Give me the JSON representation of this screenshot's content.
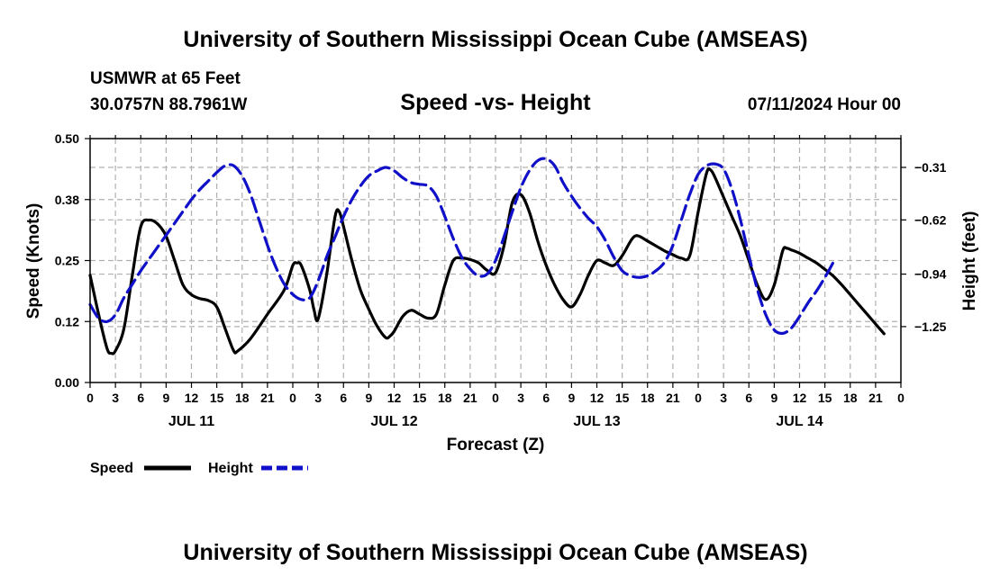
{
  "header": {
    "title": "University of Southern Mississippi Ocean Cube (AMSEAS)",
    "station": "USMWR at 65 Feet",
    "location": "30.0757N  88.7961W",
    "subtitle": "Speed -vs- Height",
    "datestamp": "07/11/2024 Hour 00"
  },
  "footer": {
    "title": "University of Southern Mississippi Ocean Cube (AMSEAS)"
  },
  "colors": {
    "speed": "#000000",
    "height": "#1010c8",
    "grid": "#b0b0b0"
  },
  "chart_data": {
    "type": "line",
    "xlabel": "Forecast (Z)",
    "ylabel": "Speed (Knots)",
    "y2label": "Height (feet)",
    "x_range_hours": [
      0,
      96
    ],
    "x_tick_step_hours": 3,
    "x_tick_labels": [
      "0",
      "3",
      "6",
      "9",
      "12",
      "15",
      "18",
      "21",
      "0",
      "3",
      "6",
      "9",
      "12",
      "15",
      "18",
      "21",
      "0",
      "3",
      "6",
      "9",
      "12",
      "15",
      "18",
      "21",
      "0",
      "3",
      "6",
      "9",
      "12",
      "15",
      "18",
      "21",
      "0"
    ],
    "day_labels": [
      {
        "label": "JUL 11",
        "hour": 12
      },
      {
        "label": "JUL 12",
        "hour": 36
      },
      {
        "label": "JUL 13",
        "hour": 60
      },
      {
        "label": "JUL 14",
        "hour": 84
      }
    ],
    "ylim": [
      0,
      0.5
    ],
    "y_ticks": [
      0.0,
      0.125,
      0.25,
      0.375,
      0.5
    ],
    "y_tick_labels": [
      "0.00",
      "0.12",
      "0.25",
      "0.38",
      "0.50"
    ],
    "y2lim": [
      -1.58,
      -0.14
    ],
    "y2_ticks": [
      -0.31,
      -0.62,
      -0.94,
      -1.25
    ],
    "y2_tick_labels": [
      "-0.31",
      "-0.62",
      "-0.94",
      "-1.25"
    ],
    "series": [
      {
        "name": "Speed",
        "axis": "left",
        "style": "solid",
        "points": [
          [
            0,
            0.22
          ],
          [
            1,
            0.14
          ],
          [
            2,
            0.07
          ],
          [
            2.5,
            0.06
          ],
          [
            3,
            0.065
          ],
          [
            4,
            0.11
          ],
          [
            5,
            0.22
          ],
          [
            6,
            0.32
          ],
          [
            7,
            0.333
          ],
          [
            8,
            0.325
          ],
          [
            9,
            0.3
          ],
          [
            10,
            0.25
          ],
          [
            11,
            0.2
          ],
          [
            12,
            0.18
          ],
          [
            13,
            0.172
          ],
          [
            14,
            0.168
          ],
          [
            15,
            0.155
          ],
          [
            16,
            0.11
          ],
          [
            17,
            0.065
          ],
          [
            17.5,
            0.065
          ],
          [
            19,
            0.09
          ],
          [
            21,
            0.14
          ],
          [
            23,
            0.19
          ],
          [
            24,
            0.24
          ],
          [
            24.5,
            0.245
          ],
          [
            25,
            0.24
          ],
          [
            26,
            0.19
          ],
          [
            26.5,
            0.15
          ],
          [
            27,
            0.13
          ],
          [
            28,
            0.22
          ],
          [
            29,
            0.34
          ],
          [
            29.5,
            0.35
          ],
          [
            30,
            0.32
          ],
          [
            31,
            0.25
          ],
          [
            32,
            0.19
          ],
          [
            33,
            0.15
          ],
          [
            34,
            0.115
          ],
          [
            35,
            0.092
          ],
          [
            35.5,
            0.095
          ],
          [
            36,
            0.105
          ],
          [
            37,
            0.135
          ],
          [
            38,
            0.148
          ],
          [
            39,
            0.14
          ],
          [
            40,
            0.132
          ],
          [
            41,
            0.14
          ],
          [
            42,
            0.2
          ],
          [
            43,
            0.25
          ],
          [
            44,
            0.255
          ],
          [
            45,
            0.252
          ],
          [
            46,
            0.245
          ],
          [
            47,
            0.23
          ],
          [
            48,
            0.225
          ],
          [
            49,
            0.28
          ],
          [
            50,
            0.37
          ],
          [
            51,
            0.385
          ],
          [
            52,
            0.35
          ],
          [
            53,
            0.29
          ],
          [
            54,
            0.24
          ],
          [
            55,
            0.2
          ],
          [
            56,
            0.17
          ],
          [
            57,
            0.155
          ],
          [
            58,
            0.18
          ],
          [
            59,
            0.22
          ],
          [
            60,
            0.25
          ],
          [
            61,
            0.245
          ],
          [
            62,
            0.24
          ],
          [
            63,
            0.26
          ],
          [
            64,
            0.29
          ],
          [
            64.5,
            0.3
          ],
          [
            65,
            0.3
          ],
          [
            66,
            0.29
          ],
          [
            67,
            0.28
          ],
          [
            68,
            0.27
          ],
          [
            69,
            0.262
          ],
          [
            70,
            0.255
          ],
          [
            71,
            0.26
          ],
          [
            72,
            0.35
          ],
          [
            73,
            0.43
          ],
          [
            73.5,
            0.435
          ],
          [
            74,
            0.42
          ],
          [
            75,
            0.38
          ],
          [
            76,
            0.34
          ],
          [
            77,
            0.3
          ],
          [
            78,
            0.25
          ],
          [
            79,
            0.2
          ],
          [
            80,
            0.17
          ],
          [
            81,
            0.2
          ],
          [
            82,
            0.27
          ],
          [
            82.5,
            0.275
          ],
          [
            83,
            0.272
          ],
          [
            84,
            0.265
          ],
          [
            85,
            0.255
          ],
          [
            86,
            0.245
          ],
          [
            87,
            0.232
          ],
          [
            88,
            0.218
          ],
          [
            89,
            0.2
          ],
          [
            90,
            0.18
          ],
          [
            91,
            0.16
          ],
          [
            92,
            0.14
          ],
          [
            93,
            0.12
          ],
          [
            94,
            0.1
          ]
        ]
      },
      {
        "name": "Height",
        "axis": "right",
        "style": "dashed",
        "points": [
          [
            0,
            -1.12
          ],
          [
            1,
            -1.2
          ],
          [
            2,
            -1.22
          ],
          [
            3,
            -1.18
          ],
          [
            4,
            -1.08
          ],
          [
            5,
            -1.0
          ],
          [
            6,
            -0.92
          ],
          [
            7,
            -0.85
          ],
          [
            8,
            -0.78
          ],
          [
            9,
            -0.71
          ],
          [
            10,
            -0.64
          ],
          [
            11,
            -0.57
          ],
          [
            12,
            -0.5
          ],
          [
            13,
            -0.44
          ],
          [
            14,
            -0.39
          ],
          [
            15,
            -0.34
          ],
          [
            16,
            -0.3
          ],
          [
            17,
            -0.3
          ],
          [
            18,
            -0.36
          ],
          [
            19,
            -0.47
          ],
          [
            20,
            -0.62
          ],
          [
            21,
            -0.77
          ],
          [
            22,
            -0.9
          ],
          [
            23,
            -1.0
          ],
          [
            24,
            -1.06
          ],
          [
            25,
            -1.09
          ],
          [
            26,
            -1.08
          ],
          [
            27,
            -0.98
          ],
          [
            28,
            -0.84
          ],
          [
            29,
            -0.72
          ],
          [
            30,
            -0.6
          ],
          [
            31,
            -0.5
          ],
          [
            32,
            -0.42
          ],
          [
            33,
            -0.36
          ],
          [
            34,
            -0.33
          ],
          [
            35,
            -0.31
          ],
          [
            36,
            -0.33
          ],
          [
            37,
            -0.37
          ],
          [
            38,
            -0.4
          ],
          [
            39,
            -0.41
          ],
          [
            40,
            -0.42
          ],
          [
            41,
            -0.48
          ],
          [
            42,
            -0.6
          ],
          [
            43,
            -0.73
          ],
          [
            44,
            -0.84
          ],
          [
            45,
            -0.91
          ],
          [
            46,
            -0.95
          ],
          [
            47,
            -0.94
          ],
          [
            48,
            -0.86
          ],
          [
            49,
            -0.72
          ],
          [
            50,
            -0.57
          ],
          [
            51,
            -0.43
          ],
          [
            52,
            -0.33
          ],
          [
            53,
            -0.27
          ],
          [
            54,
            -0.26
          ],
          [
            55,
            -0.3
          ],
          [
            56,
            -0.4
          ],
          [
            57,
            -0.48
          ],
          [
            58,
            -0.55
          ],
          [
            59,
            -0.61
          ],
          [
            60,
            -0.66
          ],
          [
            61,
            -0.74
          ],
          [
            62,
            -0.84
          ],
          [
            63,
            -0.92
          ],
          [
            64,
            -0.95
          ],
          [
            65,
            -0.96
          ],
          [
            66,
            -0.95
          ],
          [
            67,
            -0.92
          ],
          [
            68,
            -0.87
          ],
          [
            69,
            -0.77
          ],
          [
            70,
            -0.62
          ],
          [
            71,
            -0.47
          ],
          [
            72,
            -0.35
          ],
          [
            73,
            -0.3
          ],
          [
            74,
            -0.29
          ],
          [
            75,
            -0.32
          ],
          [
            76,
            -0.44
          ],
          [
            77,
            -0.62
          ],
          [
            78,
            -0.83
          ],
          [
            79,
            -1.03
          ],
          [
            80,
            -1.18
          ],
          [
            81,
            -1.27
          ],
          [
            82,
            -1.29
          ],
          [
            83,
            -1.26
          ],
          [
            84,
            -1.19
          ],
          [
            85,
            -1.11
          ],
          [
            86,
            -1.04
          ],
          [
            87,
            -0.96
          ],
          [
            88,
            -0.87
          ]
        ]
      }
    ],
    "legend": [
      {
        "label": "Speed",
        "style": "solid"
      },
      {
        "label": "Height",
        "style": "dashed"
      }
    ]
  }
}
